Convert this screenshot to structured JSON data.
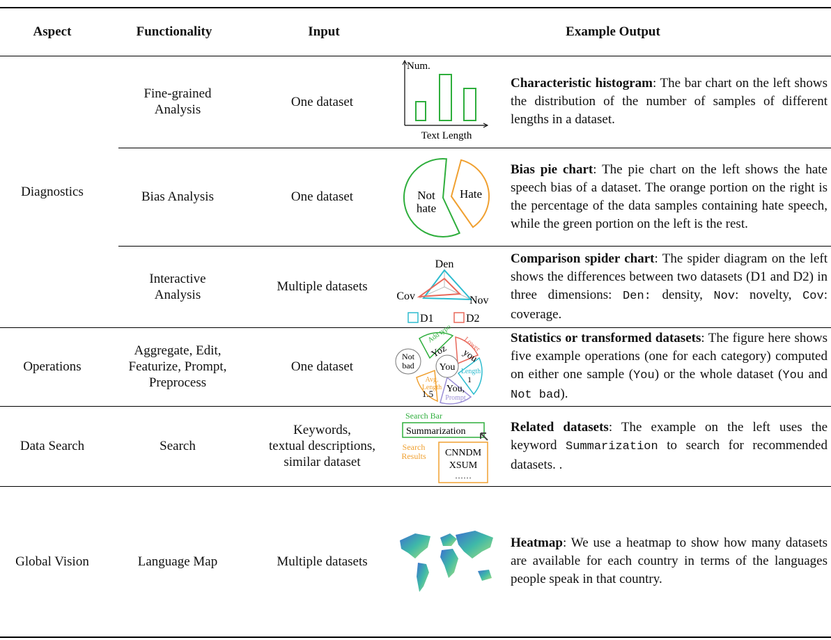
{
  "header": {
    "aspect": "Aspect",
    "functionality": "Functionality",
    "input": "Input",
    "example_output": "Example Output"
  },
  "aspects": [
    "Diagnostics",
    "Operations",
    "Data Search",
    "Global Vision"
  ],
  "rows": [
    {
      "functionality": "Fine-grained\nAnalysis",
      "input": "One dataset",
      "output": {
        "title": "Characteristic histogram",
        "body": [
          {
            "text": ": The bar chart on the left shows the distribution of the number of samples of different lengths in a dataset."
          }
        ]
      },
      "figure": {
        "y_label": "Num.",
        "x_label": "Text Length"
      }
    },
    {
      "functionality": "Bias Analysis",
      "input": "One dataset",
      "output": {
        "title": "Bias pie chart",
        "body": [
          {
            "text": ": The pie chart on the left shows the hate speech bias of a dataset. The orange portion on the right is the percentage of the data samples containing hate speech, while the green portion on the left is the rest."
          }
        ]
      },
      "figure": {
        "slices": [
          "Not\nhate",
          "Hate"
        ]
      }
    },
    {
      "functionality": "Interactive\nAnalysis",
      "input": "Multiple datasets",
      "output": {
        "title": "Comparison spider chart",
        "body": [
          {
            "text": ": The spider diagram on the left shows the differences between two datasets (D1 and D2) in three dimensions: "
          },
          {
            "code": "Den:"
          },
          {
            "text": " density, "
          },
          {
            "code": "Nov"
          },
          {
            "text": ": novelty, "
          },
          {
            "code": "Cov"
          },
          {
            "text": ": coverage."
          }
        ]
      },
      "figure": {
        "axes": [
          "Den",
          "Cov",
          "Nov"
        ],
        "legend": [
          "D1",
          "D2"
        ]
      }
    },
    {
      "functionality": "Aggregate, Edit,\nFeaturize, Prompt,\nPreprocess",
      "input": "One dataset",
      "output": {
        "title": "Statistics or transformed datasets",
        "body": [
          {
            "text": ": The figure here shows five example operations (one for each category) computed on either one sample ("
          },
          {
            "code": "You"
          },
          {
            "text": ") or the whole dataset ("
          },
          {
            "code": "You"
          },
          {
            "text": " and "
          },
          {
            "code": "Not bad"
          },
          {
            "text": ")."
          }
        ]
      },
      "figure": {
        "center": "You",
        "outer": "Not\nbad",
        "ops": [
          {
            "name": "Add typo",
            "result": "Yoz"
          },
          {
            "name": "Lower",
            "result": "you"
          },
          {
            "name": "Length",
            "result": "1"
          },
          {
            "name": "Prompt",
            "result": "You,"
          },
          {
            "name": "Avg.\nLength",
            "result": "1.5"
          }
        ]
      }
    },
    {
      "functionality": "Search",
      "input": "Keywords,\ntextual descriptions,\nsimilar dataset",
      "output": {
        "title": "Related datasets",
        "body": [
          {
            "text": ": The example on the left uses the keyword "
          },
          {
            "code": "Summarization"
          },
          {
            "text": " to search for recommended datasets. ."
          }
        ]
      },
      "figure": {
        "bar_label": "Search Bar",
        "query": "Summarization",
        "results_label": "Search\nResults",
        "results": [
          "CNNDM",
          "XSUM",
          "……"
        ]
      }
    },
    {
      "functionality": "Language Map",
      "input": "Multiple datasets",
      "output": {
        "title": "Heatmap",
        "body": [
          {
            "text": ": We use a heatmap to show how many datasets are available for each country in terms of the languages people speak in that country."
          }
        ]
      }
    }
  ]
}
